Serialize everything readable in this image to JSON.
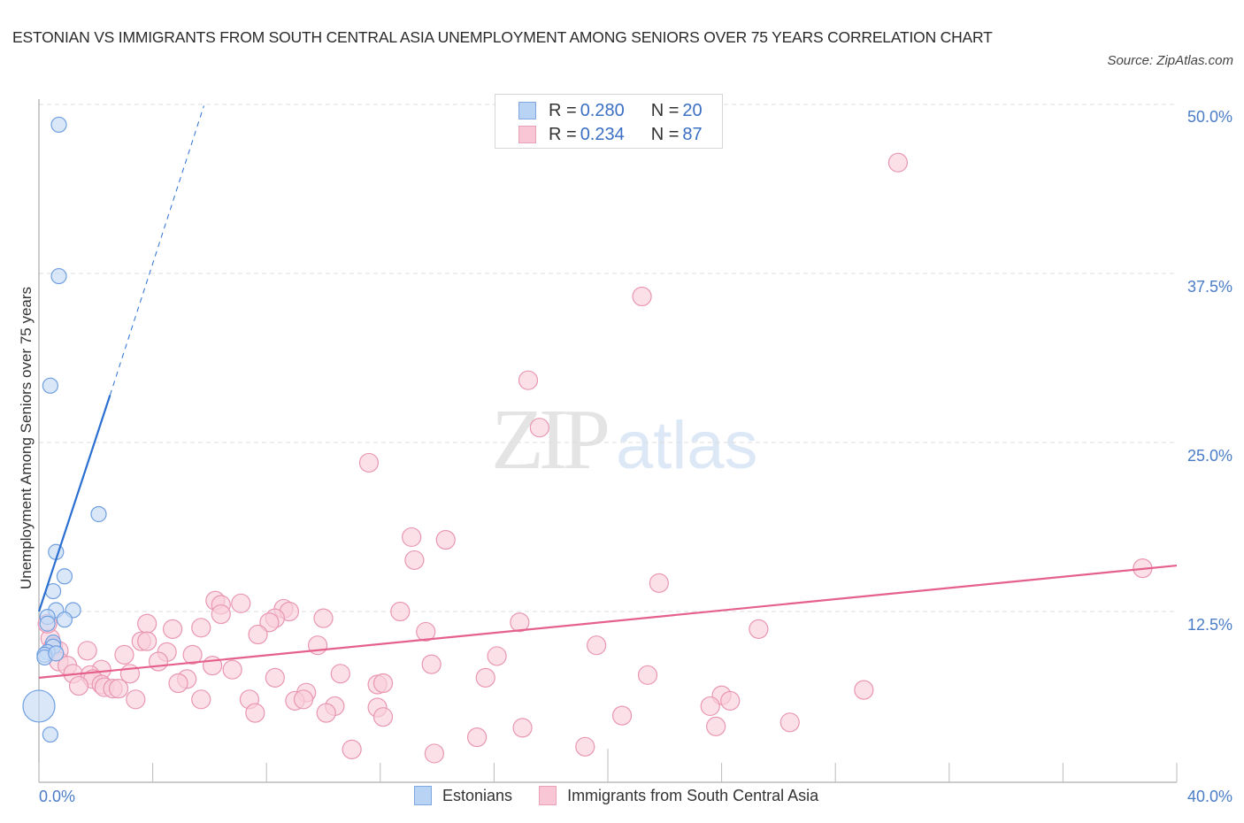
{
  "header": {
    "title": "ESTONIAN VS IMMIGRANTS FROM SOUTH CENTRAL ASIA UNEMPLOYMENT AMONG SENIORS OVER 75 YEARS CORRELATION CHART",
    "source": "Source: ZipAtlas.com"
  },
  "watermark": {
    "zip": "ZIP",
    "atlas": "atlas"
  },
  "axes": {
    "ylabel": "Unemployment Among Seniors over 75 years",
    "yticks": [
      "50.0%",
      "37.5%",
      "25.0%",
      "12.5%"
    ],
    "xticks": [
      "0.0%",
      "40.0%"
    ]
  },
  "legend_top": {
    "rows": [
      {
        "r_key": "R = ",
        "r_val": "0.280",
        "n_key": "N = ",
        "n_val": "20",
        "color": "#b9d3f5",
        "border": "#7fa8e0"
      },
      {
        "r_key": "R = ",
        "r_val": "0.234",
        "n_key": "N = ",
        "n_val": "87",
        "color": "#f9c6d6",
        "border": "#e9a0b9"
      }
    ]
  },
  "legend_bottom": {
    "items": [
      {
        "label": "Estonians",
        "color": "#b9d3f5",
        "border": "#7fa8e0"
      },
      {
        "label": "Immigrants from South Central Asia",
        "color": "#f9c6d6",
        "border": "#e9a0b9"
      }
    ]
  },
  "colors": {
    "estonian_fill": "#c5daf6",
    "estonian_stroke": "#6f9fe0",
    "estonian_line": "#2b6fd1",
    "immigrant_fill": "#f9cfdc",
    "immigrant_stroke": "#e996b2",
    "immigrant_line": "#e5608c",
    "axis_label": "#4a7cc7",
    "grid": "#dddddd"
  },
  "chart_data": {
    "type": "scatter",
    "title": "ESTONIAN VS IMMIGRANTS FROM SOUTH CENTRAL ASIA UNEMPLOYMENT AMONG SENIORS OVER 75 YEARS CORRELATION CHART",
    "xlabel": "",
    "ylabel": "Unemployment Among Seniors over 75 years",
    "xlim": [
      0,
      40
    ],
    "ylim": [
      0,
      50
    ],
    "x_tick_labels": [
      "0.0%",
      "40.0%"
    ],
    "y_tick_labels": [
      "12.5%",
      "25.0%",
      "37.5%",
      "50.0%"
    ],
    "grid": true,
    "legend_position": "bottom",
    "series": [
      {
        "name": "Estonians",
        "R": 0.28,
        "N": 20,
        "trend": {
          "x0": 0.0,
          "y0": 12.5,
          "x1": 2.5,
          "y1": 28.5,
          "dashed_to": {
            "x": 5.8,
            "y": 49.9
          }
        },
        "points": [
          [
            0.7,
            48.5
          ],
          [
            0.7,
            37.3
          ],
          [
            0.4,
            29.2
          ],
          [
            2.1,
            19.7
          ],
          [
            0.6,
            16.9
          ],
          [
            0.9,
            15.1
          ],
          [
            0.5,
            14.0
          ],
          [
            1.2,
            12.6
          ],
          [
            0.6,
            12.6
          ],
          [
            0.3,
            12.1
          ],
          [
            0.9,
            11.9
          ],
          [
            0.3,
            11.6
          ],
          [
            0.5,
            10.2
          ],
          [
            0.5,
            9.9
          ],
          [
            0.3,
            9.5
          ],
          [
            0.2,
            9.3
          ],
          [
            0.2,
            9.1
          ],
          [
            0.6,
            9.4
          ],
          [
            0.0,
            5.5
          ],
          [
            0.4,
            3.4
          ]
        ],
        "point_sizes_note": "point at [0.0, 5.5] is a large bubble"
      },
      {
        "name": "Immigrants from South Central Asia",
        "R": 0.234,
        "N": 87,
        "trend": {
          "x0": 0.0,
          "y0": 7.6,
          "x1": 40.0,
          "y1": 15.9
        },
        "points": [
          [
            30.2,
            45.7
          ],
          [
            21.2,
            35.8
          ],
          [
            17.2,
            29.6
          ],
          [
            17.6,
            26.1
          ],
          [
            11.6,
            23.5
          ],
          [
            13.1,
            18.0
          ],
          [
            14.3,
            17.8
          ],
          [
            13.2,
            16.3
          ],
          [
            38.8,
            15.7
          ],
          [
            21.8,
            14.6
          ],
          [
            6.2,
            13.3
          ],
          [
            6.4,
            13.0
          ],
          [
            7.1,
            13.1
          ],
          [
            8.6,
            12.7
          ],
          [
            8.8,
            12.5
          ],
          [
            12.7,
            12.5
          ],
          [
            6.4,
            12.3
          ],
          [
            8.3,
            12.0
          ],
          [
            10.0,
            12.0
          ],
          [
            8.1,
            11.7
          ],
          [
            3.8,
            11.6
          ],
          [
            16.9,
            11.7
          ],
          [
            5.7,
            11.3
          ],
          [
            4.7,
            11.2
          ],
          [
            13.6,
            11.0
          ],
          [
            7.7,
            10.8
          ],
          [
            25.3,
            11.2
          ],
          [
            3.6,
            10.3
          ],
          [
            3.8,
            10.3
          ],
          [
            9.8,
            10.0
          ],
          [
            19.6,
            10.0
          ],
          [
            0.4,
            10.5
          ],
          [
            0.5,
            9.9
          ],
          [
            1.7,
            9.6
          ],
          [
            0.7,
            9.6
          ],
          [
            3.0,
            9.3
          ],
          [
            4.5,
            9.5
          ],
          [
            5.4,
            9.3
          ],
          [
            16.1,
            9.2
          ],
          [
            0.3,
            11.6
          ],
          [
            4.2,
            8.8
          ],
          [
            0.7,
            8.8
          ],
          [
            1.0,
            8.5
          ],
          [
            6.1,
            8.5
          ],
          [
            13.8,
            8.6
          ],
          [
            2.2,
            8.2
          ],
          [
            6.8,
            8.2
          ],
          [
            1.2,
            7.9
          ],
          [
            1.8,
            7.8
          ],
          [
            3.2,
            7.9
          ],
          [
            10.6,
            7.9
          ],
          [
            1.9,
            7.5
          ],
          [
            5.2,
            7.5
          ],
          [
            8.3,
            7.6
          ],
          [
            15.7,
            7.6
          ],
          [
            21.4,
            7.8
          ],
          [
            2.2,
            7.1
          ],
          [
            4.9,
            7.2
          ],
          [
            11.9,
            7.1
          ],
          [
            12.1,
            7.2
          ],
          [
            1.4,
            7.0
          ],
          [
            2.3,
            6.9
          ],
          [
            2.6,
            6.8
          ],
          [
            2.8,
            6.8
          ],
          [
            9.4,
            6.5
          ],
          [
            29.0,
            6.7
          ],
          [
            24.0,
            6.3
          ],
          [
            5.7,
            6.0
          ],
          [
            7.4,
            6.0
          ],
          [
            9.0,
            5.9
          ],
          [
            9.3,
            6.0
          ],
          [
            3.4,
            6.0
          ],
          [
            24.3,
            5.9
          ],
          [
            10.4,
            5.5
          ],
          [
            11.9,
            5.4
          ],
          [
            23.6,
            5.5
          ],
          [
            7.6,
            5.0
          ],
          [
            10.1,
            5.0
          ],
          [
            12.1,
            4.7
          ],
          [
            20.5,
            4.8
          ],
          [
            26.4,
            4.3
          ],
          [
            17.0,
            3.9
          ],
          [
            23.8,
            4.0
          ],
          [
            15.4,
            3.2
          ],
          [
            19.2,
            2.5
          ],
          [
            11.0,
            2.3
          ],
          [
            13.9,
            2.0
          ]
        ]
      }
    ]
  }
}
